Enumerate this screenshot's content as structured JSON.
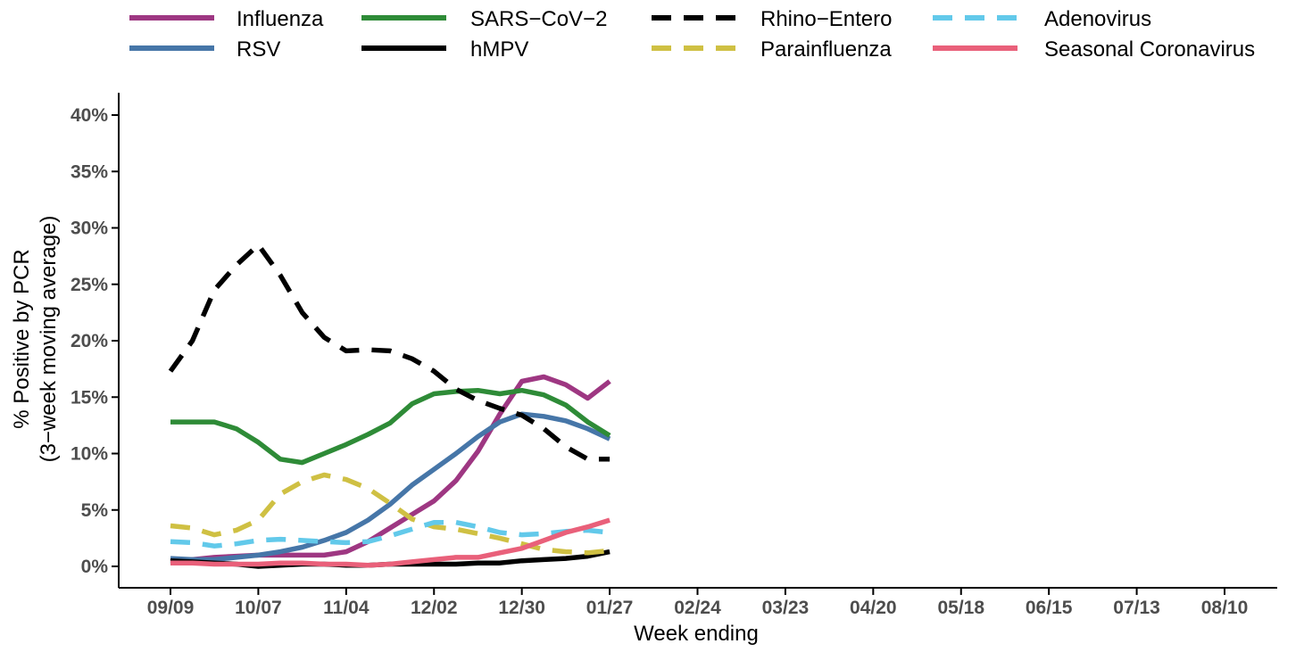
{
  "chart_data": {
    "type": "line",
    "xlabel": "Week ending",
    "ylabel_line1": "% Positive by PCR",
    "ylabel_line2": "(3−week moving average)",
    "ylim": [
      0,
      40
    ],
    "yticks": [
      0,
      5,
      10,
      15,
      20,
      25,
      30,
      35,
      40
    ],
    "ytick_labels": [
      "0%",
      "5%",
      "10%",
      "15%",
      "20%",
      "25%",
      "30%",
      "35%",
      "40%"
    ],
    "x_tick_labels": [
      "09/09",
      "10/07",
      "11/04",
      "12/02",
      "12/30",
      "01/27",
      "02/24",
      "03/23",
      "04/20",
      "05/18",
      "06/15",
      "07/13",
      "08/10"
    ],
    "x_tick_weeks": [
      0,
      4,
      8,
      12,
      16,
      20,
      24,
      28,
      32,
      36,
      40,
      44,
      48
    ],
    "x_range_weeks": [
      0,
      48
    ],
    "x_units": "weeks after 09/09",
    "grid": false,
    "legend_position": "top",
    "series": [
      {
        "name": "Influenza",
        "color": "#9e3782",
        "dash": "solid",
        "x": [
          0,
          1,
          2,
          3,
          4,
          5,
          6,
          7,
          8,
          9,
          10,
          11,
          12,
          13,
          14,
          15,
          16,
          17,
          18,
          19,
          20
        ],
        "values": [
          0.4,
          0.6,
          0.8,
          0.9,
          1.0,
          1.0,
          1.0,
          1.0,
          1.3,
          2.2,
          3.4,
          4.6,
          5.8,
          7.6,
          10.2,
          13.5,
          16.4,
          16.8,
          16.1,
          14.9,
          16.4
        ]
      },
      {
        "name": "RSV",
        "color": "#4676a8",
        "dash": "solid",
        "x": [
          0,
          1,
          2,
          3,
          4,
          5,
          6,
          7,
          8,
          9,
          10,
          11,
          12,
          13,
          14,
          15,
          16,
          17,
          18,
          19,
          20
        ],
        "values": [
          0.7,
          0.6,
          0.6,
          0.8,
          1.0,
          1.3,
          1.7,
          2.3,
          3.0,
          4.1,
          5.5,
          7.2,
          8.6,
          10.0,
          11.5,
          12.8,
          13.5,
          13.3,
          12.9,
          12.2,
          11.3
        ]
      },
      {
        "name": "SARS−CoV−2",
        "color": "#2e8b37",
        "dash": "solid",
        "x": [
          0,
          1,
          2,
          3,
          4,
          5,
          6,
          7,
          8,
          9,
          10,
          11,
          12,
          13,
          14,
          15,
          16,
          17,
          18,
          19,
          20
        ],
        "values": [
          12.8,
          12.8,
          12.8,
          12.2,
          11.0,
          9.5,
          9.2,
          10.0,
          10.8,
          11.7,
          12.7,
          14.4,
          15.3,
          15.5,
          15.6,
          15.3,
          15.6,
          15.2,
          14.3,
          12.8,
          11.6
        ]
      },
      {
        "name": "hMPV",
        "color": "#000000",
        "dash": "solid",
        "x": [
          0,
          1,
          2,
          3,
          4,
          5,
          6,
          7,
          8,
          9,
          10,
          11,
          12,
          13,
          14,
          15,
          16,
          17,
          18,
          19,
          20
        ],
        "values": [
          0.5,
          0.4,
          0.3,
          0.2,
          0.0,
          0.1,
          0.2,
          0.2,
          0.1,
          0.1,
          0.2,
          0.2,
          0.2,
          0.2,
          0.3,
          0.3,
          0.5,
          0.6,
          0.7,
          0.9,
          1.3
        ]
      },
      {
        "name": "Rhino−Entero",
        "color": "#000000",
        "dash": "dashed",
        "x": [
          0,
          1,
          2,
          3,
          4,
          5,
          6,
          7,
          8,
          9,
          10,
          11,
          12,
          13,
          14,
          15,
          16,
          17,
          18,
          19,
          20
        ],
        "values": [
          17.3,
          20.0,
          24.5,
          26.7,
          28.5,
          25.8,
          22.5,
          20.3,
          19.1,
          19.2,
          19.1,
          18.4,
          17.3,
          15.7,
          14.7,
          14.0,
          13.4,
          12.2,
          10.6,
          9.5,
          9.5
        ]
      },
      {
        "name": "Parainfluenza",
        "color": "#cfc043",
        "dash": "dashed",
        "x": [
          0,
          1,
          2,
          3,
          4,
          5,
          6,
          7,
          8,
          9,
          10,
          11,
          12,
          13,
          14,
          15,
          16,
          17,
          18,
          19,
          20
        ],
        "values": [
          3.6,
          3.4,
          2.8,
          3.2,
          4.1,
          6.4,
          7.5,
          8.1,
          7.7,
          6.9,
          5.6,
          4.2,
          3.5,
          3.3,
          2.9,
          2.5,
          2.0,
          1.5,
          1.3,
          1.2,
          1.4
        ]
      },
      {
        "name": "Adenovirus",
        "color": "#62c9ea",
        "dash": "dashed",
        "x": [
          0,
          1,
          2,
          3,
          4,
          5,
          6,
          7,
          8,
          9,
          10,
          11,
          12,
          13,
          14,
          15,
          16,
          17,
          18,
          19,
          20
        ],
        "values": [
          2.2,
          2.1,
          1.8,
          2.0,
          2.3,
          2.4,
          2.3,
          2.2,
          2.1,
          2.2,
          2.7,
          3.3,
          3.9,
          3.9,
          3.5,
          3.0,
          2.8,
          2.9,
          3.1,
          3.2,
          3.0
        ]
      },
      {
        "name": "Seasonal Coronavirus",
        "color": "#e9607a",
        "dash": "solid",
        "x": [
          0,
          1,
          2,
          3,
          4,
          5,
          6,
          7,
          8,
          9,
          10,
          11,
          12,
          13,
          14,
          15,
          16,
          17,
          18,
          19,
          20
        ],
        "values": [
          0.3,
          0.3,
          0.2,
          0.2,
          0.2,
          0.3,
          0.3,
          0.2,
          0.2,
          0.1,
          0.2,
          0.4,
          0.6,
          0.8,
          0.8,
          1.2,
          1.6,
          2.3,
          3.0,
          3.5,
          4.1
        ]
      }
    ]
  }
}
